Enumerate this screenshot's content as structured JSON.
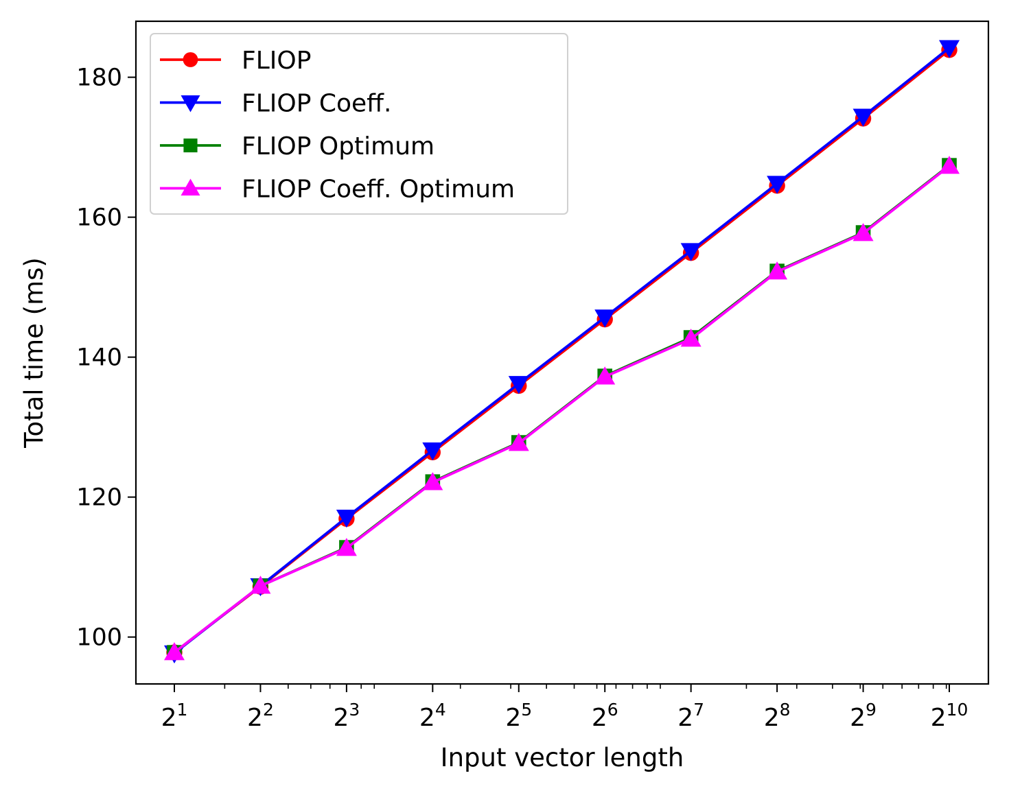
{
  "chart_data": {
    "type": "line",
    "xlabel": "Input vector length",
    "ylabel": "Total time (ms)",
    "x_scale": "log2",
    "x": [
      2,
      4,
      8,
      16,
      32,
      64,
      128,
      256,
      512,
      1024
    ],
    "x_tick_labels": [
      {
        "base": "2",
        "exp": "1"
      },
      {
        "base": "2",
        "exp": "2"
      },
      {
        "base": "2",
        "exp": "3"
      },
      {
        "base": "2",
        "exp": "4"
      },
      {
        "base": "2",
        "exp": "5"
      },
      {
        "base": "2",
        "exp": "6"
      },
      {
        "base": "2",
        "exp": "7"
      },
      {
        "base": "2",
        "exp": "8"
      },
      {
        "base": "2",
        "exp": "9"
      },
      {
        "base": "2",
        "exp": "10"
      }
    ],
    "y_ticks": [
      "100",
      "120",
      "140",
      "160",
      "180"
    ],
    "ylim": [
      93.3,
      188.0
    ],
    "grid": false,
    "legend_position": "upper-left",
    "series": [
      {
        "name": "FLIOP",
        "color": "#ff0000",
        "marker": "circle",
        "values": [
          97.8,
          107.2,
          116.9,
          126.4,
          135.9,
          145.4,
          154.9,
          164.5,
          174.1,
          183.9
        ]
      },
      {
        "name": "FLIOP Coeff.",
        "color": "#0000ff",
        "marker": "triangle-down",
        "values": [
          97.7,
          107.3,
          117.1,
          126.7,
          136.2,
          145.7,
          155.2,
          164.8,
          174.4,
          184.2
        ]
      },
      {
        "name": "FLIOP Optimum",
        "color": "#008000",
        "marker": "square",
        "values": [
          97.8,
          107.3,
          112.8,
          122.2,
          127.8,
          137.3,
          142.8,
          152.3,
          157.8,
          167.4
        ]
      },
      {
        "name": "FLIOP Coeff. Optimum",
        "color": "#ff00ff",
        "marker": "triangle-up",
        "values": [
          97.8,
          107.3,
          112.7,
          122.1,
          127.7,
          137.2,
          142.6,
          152.2,
          157.7,
          167.3
        ]
      }
    ]
  }
}
